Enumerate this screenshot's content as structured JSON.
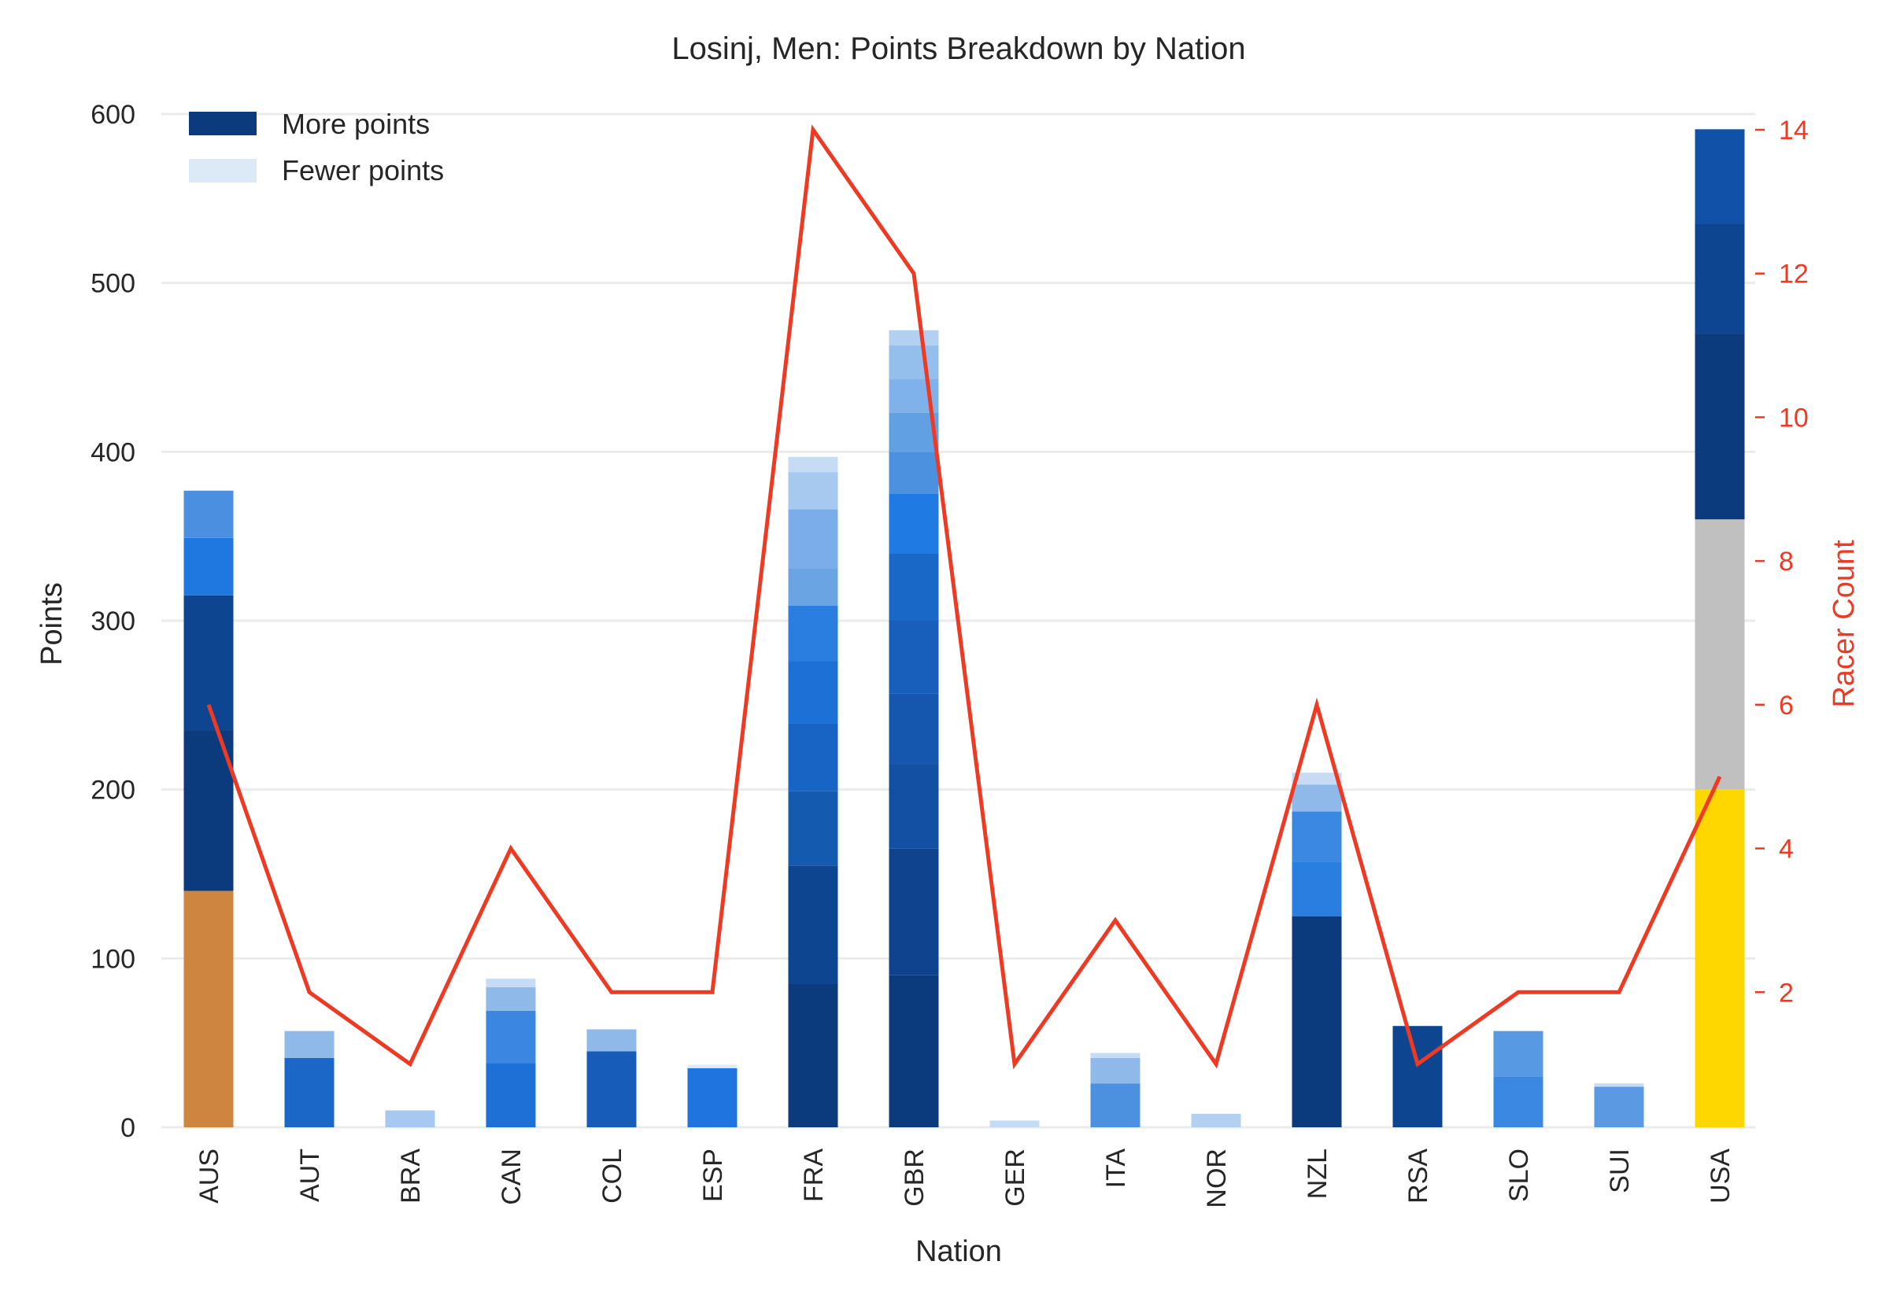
{
  "colors": {
    "line": "#ee3a23",
    "grid": "#ebebeb",
    "text": "#262626",
    "legend_more": "#0b3a7d",
    "legend_fewer": "#dce9f7"
  },
  "legend": {
    "more_label": "More points",
    "fewer_label": "Fewer points"
  },
  "chart_data": {
    "type": "bar",
    "title": "Losinj, Men: Points Breakdown by Nation",
    "xlabel": "Nation",
    "ylabel": "Points",
    "y2label": "Racer Count",
    "ylim": [
      0,
      600
    ],
    "y2lim": [
      0.12,
      14
    ],
    "yticks": [
      "0",
      "100",
      "200",
      "300",
      "400",
      "500",
      "600"
    ],
    "y2ticks": [
      "2",
      "4",
      "6",
      "8",
      "10",
      "12",
      "14"
    ],
    "grid": true,
    "legend_position": "top-left",
    "categories": [
      "AUS",
      "AUT",
      "BRA",
      "CAN",
      "COL",
      "ESP",
      "FRA",
      "GBR",
      "GER",
      "ITA",
      "NOR",
      "NZL",
      "RSA",
      "SLO",
      "SUI",
      "USA"
    ],
    "racer_count": [
      6,
      2,
      1,
      4,
      2,
      2,
      14,
      12,
      1,
      3,
      1,
      6,
      1,
      2,
      2,
      5
    ],
    "segments": [
      [
        {
          "value": 140,
          "color": "#cd853f"
        },
        {
          "value": 95,
          "color": "#0b3a7d"
        },
        {
          "value": 80,
          "color": "#0e4591"
        },
        {
          "value": 34,
          "color": "#1f78e0"
        },
        {
          "value": 28,
          "color": "#4a8fe0"
        }
      ],
      [
        {
          "value": 41,
          "color": "#1b67c8"
        },
        {
          "value": 16,
          "color": "#8fb9e8"
        }
      ],
      [
        {
          "value": 10,
          "color": "#a8c9ef"
        }
      ],
      [
        {
          "value": 38,
          "color": "#1f70d6"
        },
        {
          "value": 31,
          "color": "#3a86e0"
        },
        {
          "value": 14,
          "color": "#8fb9e8"
        },
        {
          "value": 5,
          "color": "#c6dcf5"
        }
      ],
      [
        {
          "value": 45,
          "color": "#175cb8"
        },
        {
          "value": 13,
          "color": "#8fb9e8"
        }
      ],
      [
        {
          "value": 35,
          "color": "#1f74e0"
        },
        {
          "value": 2,
          "color": "#dce9f7"
        }
      ],
      [
        {
          "value": 85,
          "color": "#0b3a7d"
        },
        {
          "value": 70,
          "color": "#0e4591"
        },
        {
          "value": 44,
          "color": "#145aaf"
        },
        {
          "value": 40,
          "color": "#1864c4"
        },
        {
          "value": 37,
          "color": "#1c70d6"
        },
        {
          "value": 33,
          "color": "#2a7ee0"
        },
        {
          "value": 22,
          "color": "#6aa4e3"
        },
        {
          "value": 35,
          "color": "#7badea"
        },
        {
          "value": 22,
          "color": "#a8c9ef"
        },
        {
          "value": 9,
          "color": "#c6dcf5"
        }
      ],
      [
        {
          "value": 90,
          "color": "#0b3a7d"
        },
        {
          "value": 75,
          "color": "#0f438e"
        },
        {
          "value": 50,
          "color": "#134fa3"
        },
        {
          "value": 42,
          "color": "#1557ae"
        },
        {
          "value": 43,
          "color": "#175fba"
        },
        {
          "value": 40,
          "color": "#1967c6"
        },
        {
          "value": 35,
          "color": "#1f7ae3"
        },
        {
          "value": 25,
          "color": "#4c90e0"
        },
        {
          "value": 23,
          "color": "#62a0e4"
        },
        {
          "value": 20,
          "color": "#7fb1ea"
        },
        {
          "value": 20,
          "color": "#94beec"
        },
        {
          "value": 9,
          "color": "#b3d0f1"
        }
      ],
      [
        {
          "value": 4,
          "color": "#c6dcf5"
        }
      ],
      [
        {
          "value": 26,
          "color": "#4c90e0"
        },
        {
          "value": 15,
          "color": "#8fb9e8"
        },
        {
          "value": 3,
          "color": "#c6dcf5"
        }
      ],
      [
        {
          "value": 8,
          "color": "#b3d0f1"
        }
      ],
      [
        {
          "value": 125,
          "color": "#0b3a7d"
        },
        {
          "value": 32,
          "color": "#2a7ee0"
        },
        {
          "value": 30,
          "color": "#3a88e2"
        },
        {
          "value": 16,
          "color": "#8fb9e8"
        },
        {
          "value": 7,
          "color": "#c6dcf5"
        }
      ],
      [
        {
          "value": 60,
          "color": "#0e4591"
        }
      ],
      [
        {
          "value": 30,
          "color": "#3a88e2"
        },
        {
          "value": 27,
          "color": "#5799e3"
        }
      ],
      [
        {
          "value": 24,
          "color": "#5b9ae3"
        },
        {
          "value": 2,
          "color": "#c6dcf5"
        }
      ],
      [
        {
          "value": 200,
          "color": "#ffd700"
        },
        {
          "value": 160,
          "color": "#c0c0c0"
        },
        {
          "value": 110,
          "color": "#0b3a7d"
        },
        {
          "value": 65,
          "color": "#0e4591"
        },
        {
          "value": 56,
          "color": "#1152a8"
        }
      ]
    ]
  }
}
